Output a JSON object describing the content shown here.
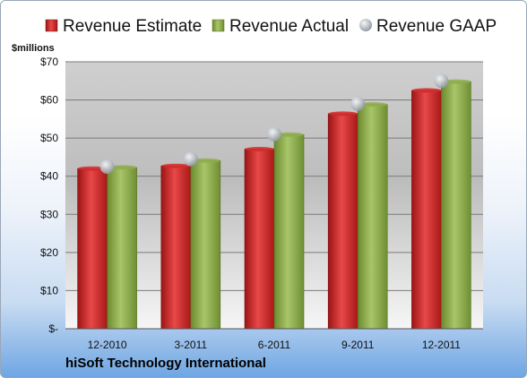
{
  "company_name": "hiSoft Technology International",
  "chart_data": {
    "type": "bar",
    "title": "",
    "units_label": "$millions",
    "categories": [
      "12-2010",
      "3-2011",
      "6-2011",
      "9-2011",
      "12-2011"
    ],
    "series": [
      {
        "name": "Revenue Estimate",
        "kind": "bar",
        "color": "#d42a2a",
        "values": [
          42.0,
          42.7,
          47.1,
          56.4,
          62.5
        ]
      },
      {
        "name": "Revenue Actual",
        "kind": "bar",
        "color": "#8fae4c",
        "values": [
          42.3,
          44.1,
          50.9,
          58.8,
          64.8
        ]
      },
      {
        "name": "Revenue GAAP",
        "kind": "marker",
        "color": "#b9bec6",
        "values": [
          42.5,
          44.5,
          51.0,
          59.0,
          65.0
        ]
      }
    ],
    "yticks": [
      {
        "value": 0,
        "label": "$-"
      },
      {
        "value": 10,
        "label": "$10"
      },
      {
        "value": 20,
        "label": "$20"
      },
      {
        "value": 30,
        "label": "$30"
      },
      {
        "value": 40,
        "label": "$40"
      },
      {
        "value": 50,
        "label": "$50"
      },
      {
        "value": 60,
        "label": "$60"
      },
      {
        "value": 70,
        "label": "$70"
      }
    ],
    "ylim": [
      0,
      70
    ],
    "grid": true,
    "legend_position": "top"
  }
}
